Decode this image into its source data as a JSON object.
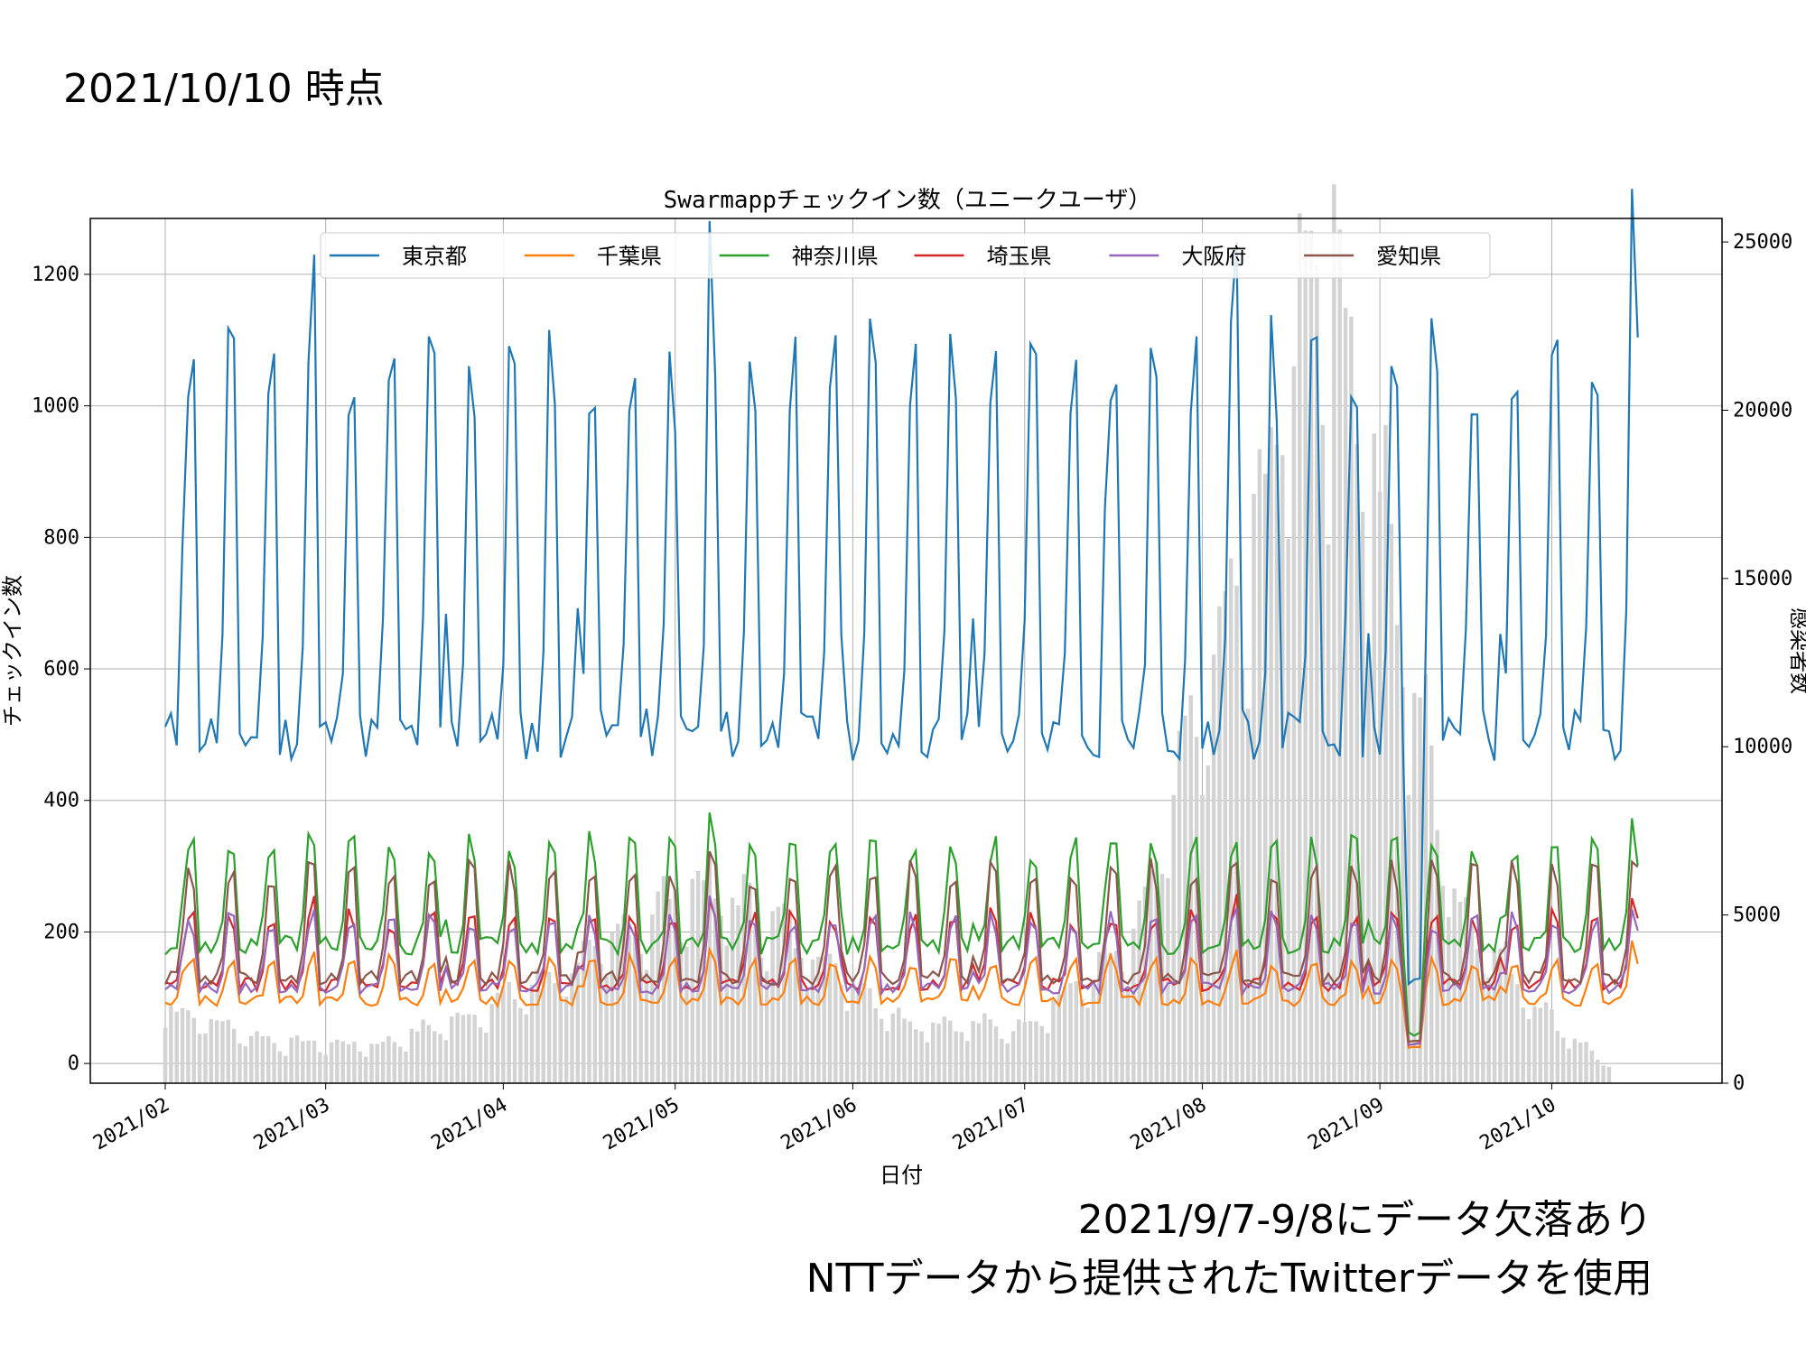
{
  "slide": {
    "title": "2021/10/10 時点",
    "note1": "2021/9/7-9/8にデータ欠落あり",
    "note2": "NTTデータから提供されたTwitterデータを使用"
  },
  "chart_data": {
    "type": "line",
    "title": "Swarmappチェックイン数（ユニークユーザ）",
    "xlabel": "日付",
    "ylabel": "チェックイン数",
    "y2label": "感染者数",
    "x_tick_labels": [
      "2021/02",
      "2021/03",
      "2021/04",
      "2021/05",
      "2021/06",
      "2021/07",
      "2021/08",
      "2021/09",
      "2021/10"
    ],
    "y_ticks": [
      0,
      200,
      400,
      600,
      800,
      1000,
      1200
    ],
    "y2_ticks": [
      0,
      5000,
      10000,
      15000,
      20000,
      25000
    ],
    "ylim": [
      -30,
      1285
    ],
    "y2lim": [
      0,
      25700
    ],
    "grid": true,
    "legend_position": "top-center",
    "x_start": "2021-02-01",
    "x_end": "2021-10-17",
    "series": [
      {
        "name": "東京都",
        "color": "#1f77b4",
        "base": 500,
        "peak": 1060,
        "spike": 620
      },
      {
        "name": "千葉県",
        "color": "#ff7f0e",
        "base": 95,
        "peak": 155,
        "spike": 80
      },
      {
        "name": "神奈川県",
        "color": "#2ca02c",
        "base": 180,
        "peak": 330,
        "spike": 120
      },
      {
        "name": "埼玉県",
        "color": "#d62728",
        "base": 120,
        "peak": 220,
        "spike": 110
      },
      {
        "name": "大阪府",
        "color": "#9467bd",
        "base": 115,
        "peak": 215,
        "spike": 90
      },
      {
        "name": "愛知県",
        "color": "#8c564b",
        "base": 130,
        "peak": 290,
        "spike": 120
      }
    ],
    "bars": {
      "name": "感染者数",
      "color": "#d3d3d3",
      "monthly_levels": [
        {
          "date": "2021-02-01",
          "value": 2200
        },
        {
          "date": "2021-02-20",
          "value": 1200
        },
        {
          "date": "2021-03-10",
          "value": 1100
        },
        {
          "date": "2021-03-25",
          "value": 1900
        },
        {
          "date": "2021-04-15",
          "value": 3500
        },
        {
          "date": "2021-05-05",
          "value": 5800
        },
        {
          "date": "2021-05-20",
          "value": 4500
        },
        {
          "date": "2021-06-10",
          "value": 1800
        },
        {
          "date": "2021-06-30",
          "value": 1600
        },
        {
          "date": "2021-07-20",
          "value": 4000
        },
        {
          "date": "2021-08-01",
          "value": 11000
        },
        {
          "date": "2021-08-10",
          "value": 15500
        },
        {
          "date": "2021-08-20",
          "value": 24500
        },
        {
          "date": "2021-08-25",
          "value": 23000
        },
        {
          "date": "2021-09-05",
          "value": 13000
        },
        {
          "date": "2021-09-15",
          "value": 5000
        },
        {
          "date": "2021-09-30",
          "value": 2000
        },
        {
          "date": "2021-10-10",
          "value": 600
        }
      ]
    }
  }
}
